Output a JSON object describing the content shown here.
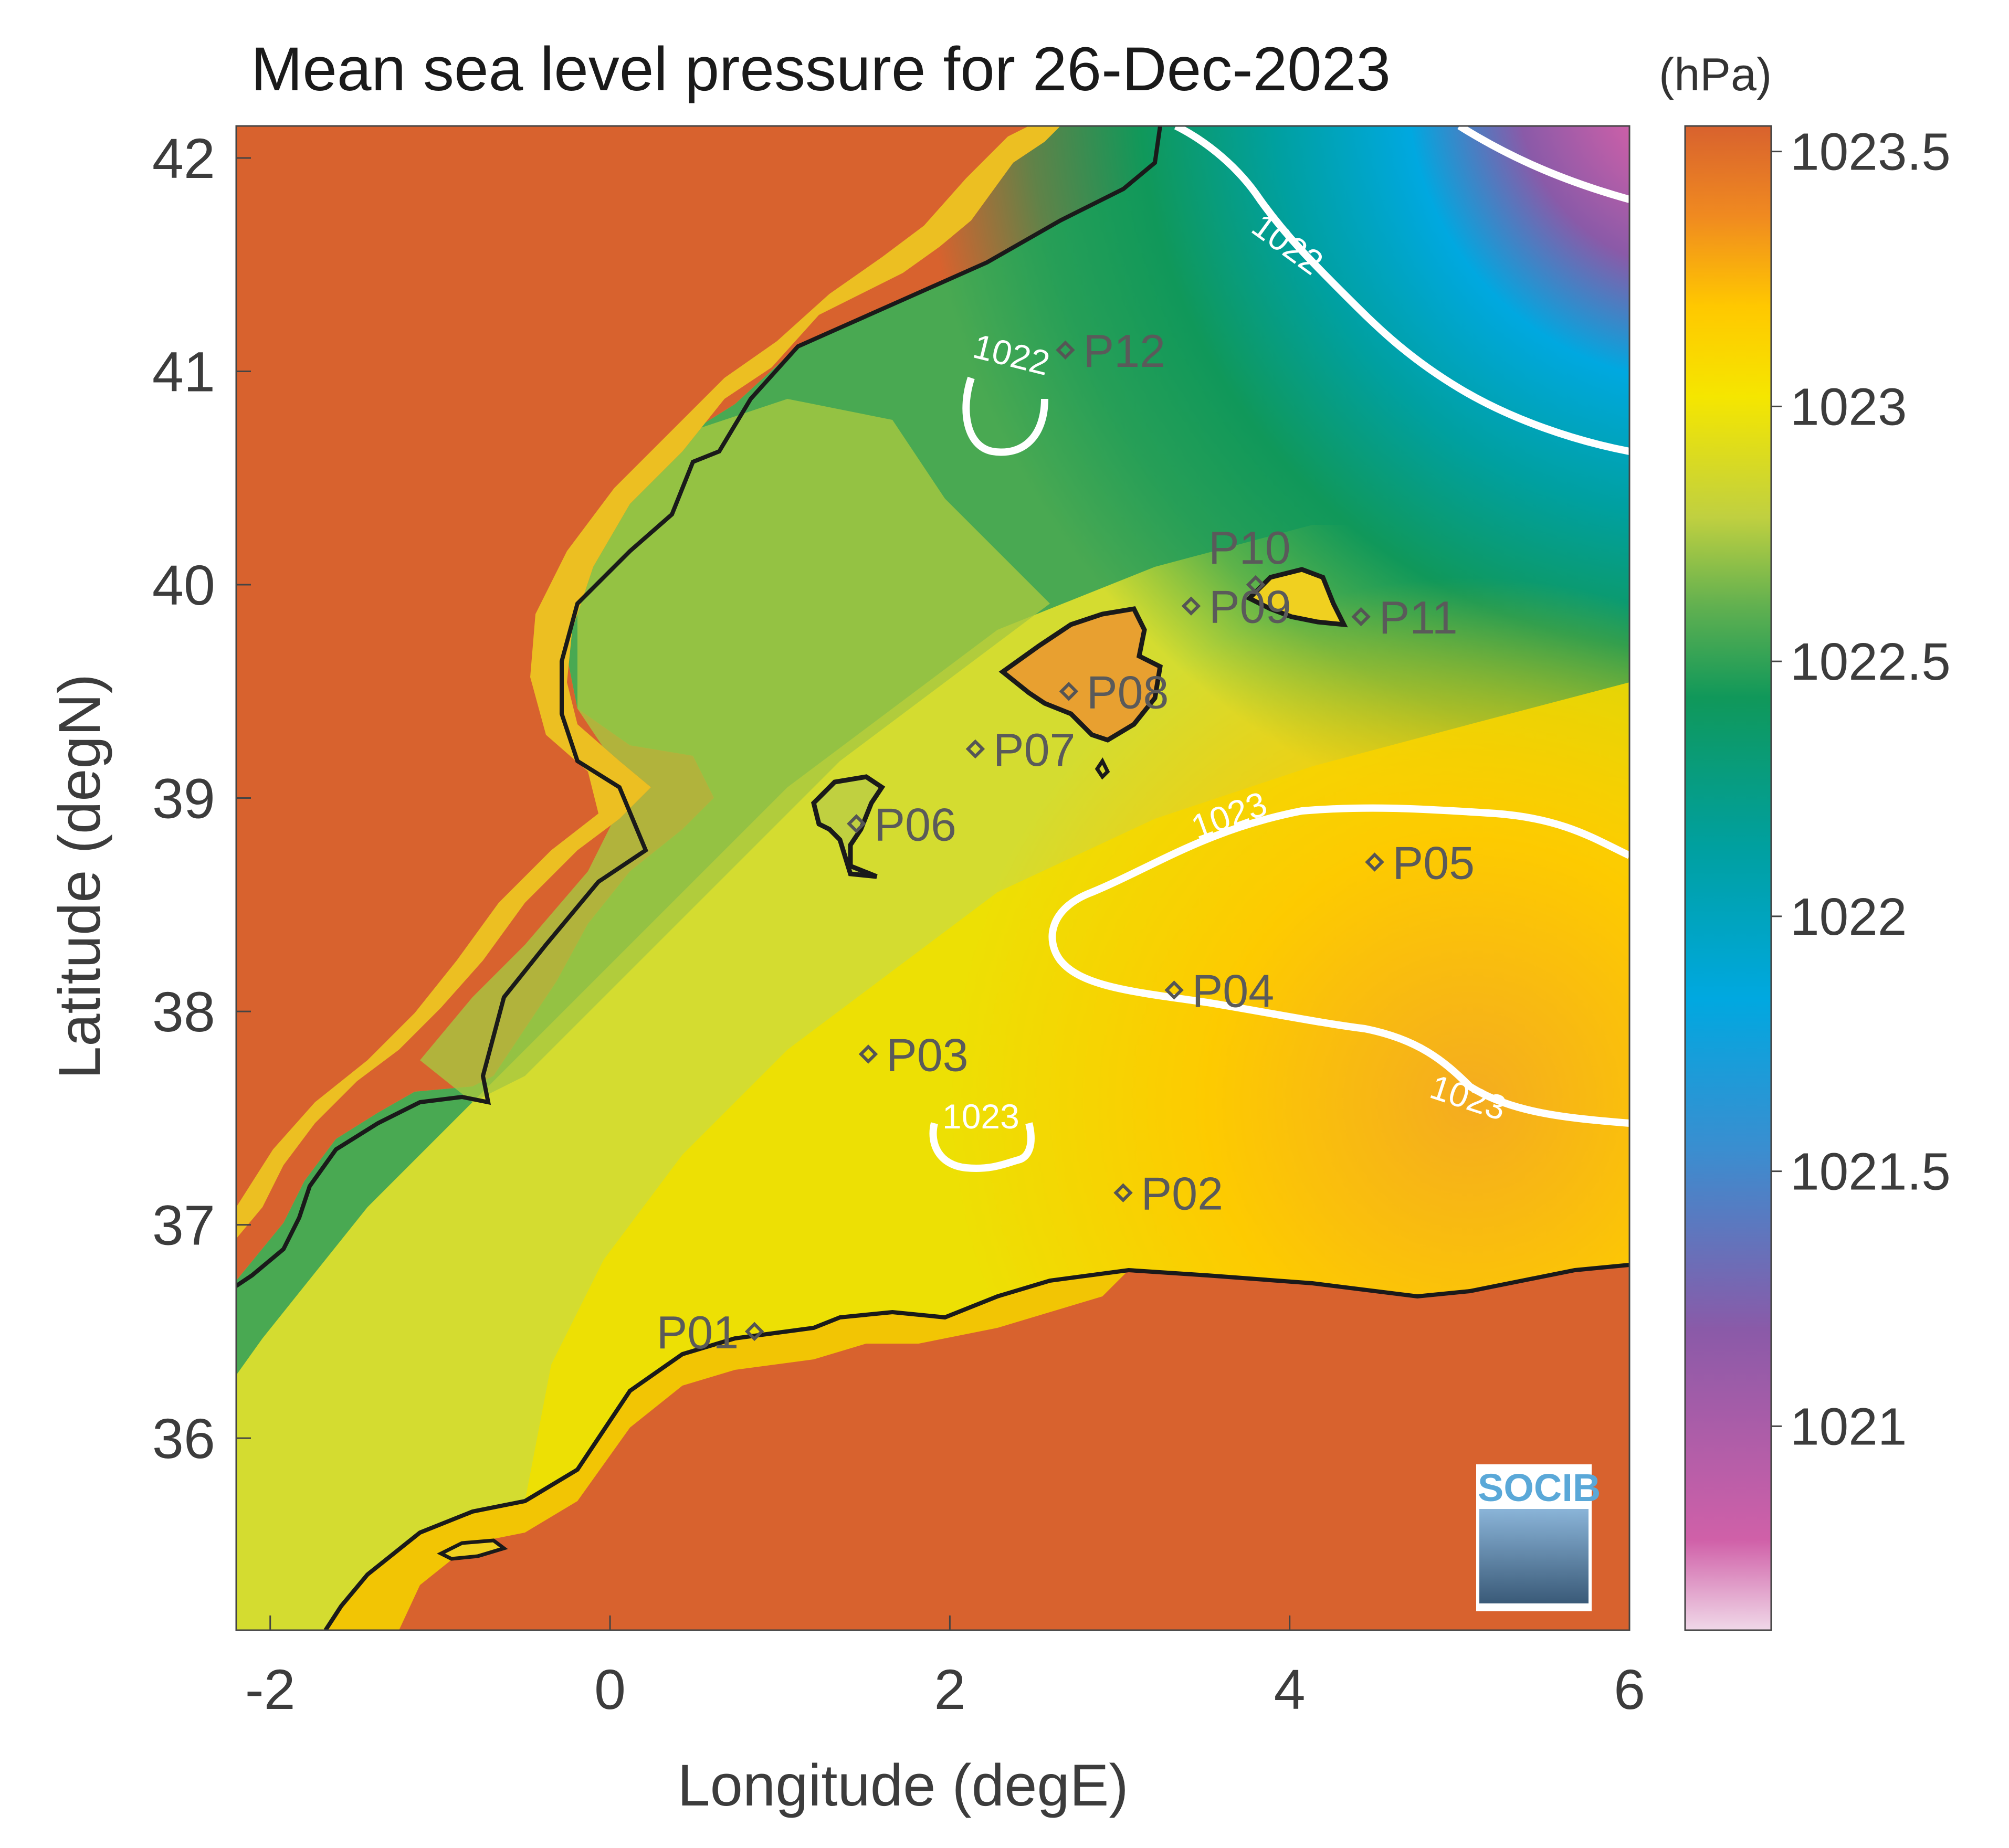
{
  "title": "Mean sea level pressure for 26-Dec-2023",
  "units": "(hPa)",
  "xlabel": "Longitude (degE)",
  "ylabel": "Latitude (degN)",
  "logo": "SOCIB",
  "chart_data": {
    "type": "heatmap",
    "xlim": [
      -2.2,
      6
    ],
    "ylim": [
      35.1,
      42.15
    ],
    "x_ticks": [
      "-2",
      "0",
      "2",
      "4",
      "6"
    ],
    "y_ticks": [
      "36",
      "37",
      "38",
      "39",
      "40",
      "41",
      "42"
    ],
    "colorbar": {
      "range": [
        1020.6,
        1023.55
      ],
      "ticks": [
        "1021",
        "1021.5",
        "1022",
        "1022.5",
        "1023",
        "1023.5"
      ],
      "colors": [
        "#f0d8e8",
        "#d060a8",
        "#8a5aa8",
        "#3a8ed0",
        "#00a8e0",
        "#00a0a0",
        "#10985a",
        "#60b050",
        "#c0d040",
        "#f5e600",
        "#ffc800",
        "#f08a20",
        "#d8622e"
      ]
    },
    "land_color": "#d8622e",
    "contours": [
      {
        "label": "1022",
        "level": 1022
      },
      {
        "label": "1022",
        "level": 1022
      },
      {
        "label": "1023",
        "level": 1023
      },
      {
        "label": "1023",
        "level": 1023
      },
      {
        "label": "1023",
        "level": 1023
      }
    ],
    "stations": [
      {
        "name": "P01",
        "lon": 0.85,
        "lat": 36.5
      },
      {
        "name": "P02",
        "lon": 3.02,
        "lat": 37.15
      },
      {
        "name": "P03",
        "lon": 1.52,
        "lat": 37.8
      },
      {
        "name": "P04",
        "lon": 3.32,
        "lat": 38.1
      },
      {
        "name": "P05",
        "lon": 4.5,
        "lat": 38.7
      },
      {
        "name": "P06",
        "lon": 1.45,
        "lat": 38.88
      },
      {
        "name": "P07",
        "lon": 2.15,
        "lat": 39.23
      },
      {
        "name": "P08",
        "lon": 2.7,
        "lat": 39.5
      },
      {
        "name": "P09",
        "lon": 3.42,
        "lat": 39.9
      },
      {
        "name": "P10",
        "lon": 3.8,
        "lat": 40.0
      },
      {
        "name": "P11",
        "lon": 4.42,
        "lat": 39.85
      },
      {
        "name": "P12",
        "lon": 2.68,
        "lat": 41.1
      }
    ]
  }
}
